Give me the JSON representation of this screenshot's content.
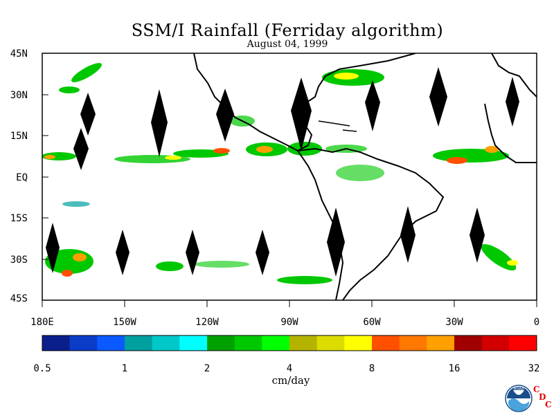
{
  "title": "SSM/I Rainfall (Ferriday algorithm)",
  "date": "August 04, 1999",
  "y_ticks": [
    "45N",
    "30N",
    "15N",
    "EQ",
    "15S",
    "30S",
    "45S"
  ],
  "x_ticks": [
    "180E",
    "150W",
    "120W",
    "90W",
    "60W",
    "30W",
    "0"
  ],
  "colorbar": {
    "labels": [
      "0.5",
      "1",
      "2",
      "4",
      "8",
      "16",
      "32"
    ],
    "units": "cm/day",
    "colors": [
      "#0a1e8c",
      "#0a3cc8",
      "#0a5aff",
      "#00a0a0",
      "#00c8c8",
      "#00ffff",
      "#00a000",
      "#00c800",
      "#00ff00",
      "#b4b400",
      "#dcdc00",
      "#ffff00",
      "#ff5000",
      "#ff7800",
      "#ffa000",
      "#a00000",
      "#d20000",
      "#ff0000"
    ]
  },
  "logo": {
    "text": "NOAA",
    "cdc": [
      "C",
      "D",
      "C"
    ]
  }
}
